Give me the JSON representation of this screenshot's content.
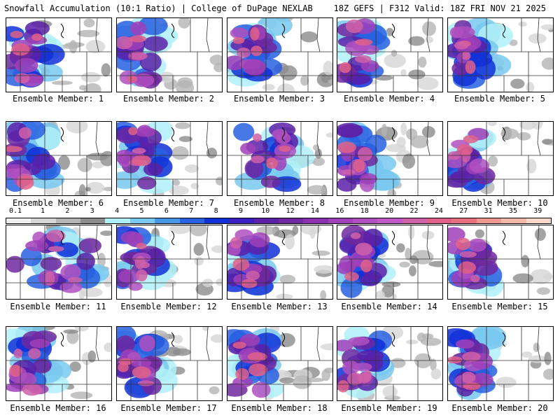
{
  "header": {
    "left": "Snowfall Accumulation (10:1 Ratio) | College of DuPage NEXLAB",
    "right": "18Z GEFS | F312 Valid: 18Z FRI NOV 21 2025"
  },
  "member_label_prefix": "Ensemble Member:",
  "members": [
    1,
    2,
    3,
    4,
    5,
    6,
    7,
    8,
    9,
    10,
    11,
    12,
    13,
    14,
    15,
    16,
    17,
    18,
    19,
    20
  ],
  "colorbar": {
    "labels": [
      "0.1",
      "1",
      "2",
      "3",
      "4",
      "5",
      "6",
      "7",
      "8",
      "9",
      "10",
      "12",
      "14",
      "16",
      "18",
      "20",
      "22",
      "24",
      "27",
      "31",
      "35",
      "39"
    ],
    "colors": [
      "#f0f0f0",
      "#d6d6d6",
      "#b4b4b4",
      "#8c8c8c",
      "#b0f0f8",
      "#78c8f0",
      "#4896e8",
      "#2860e0",
      "#1030d8",
      "#3a20c0",
      "#5a20a8",
      "#7028a0",
      "#8a30b0",
      "#a040b8",
      "#b050c0",
      "#c058c8",
      "#d060a8",
      "#e06088",
      "#e87080",
      "#f09890",
      "#f4b8a8",
      "#f8d8c8"
    ]
  },
  "legend_terms": {
    "light": "gray",
    "moderate": "blue",
    "heavy": "purple",
    "extreme": "pink"
  }
}
